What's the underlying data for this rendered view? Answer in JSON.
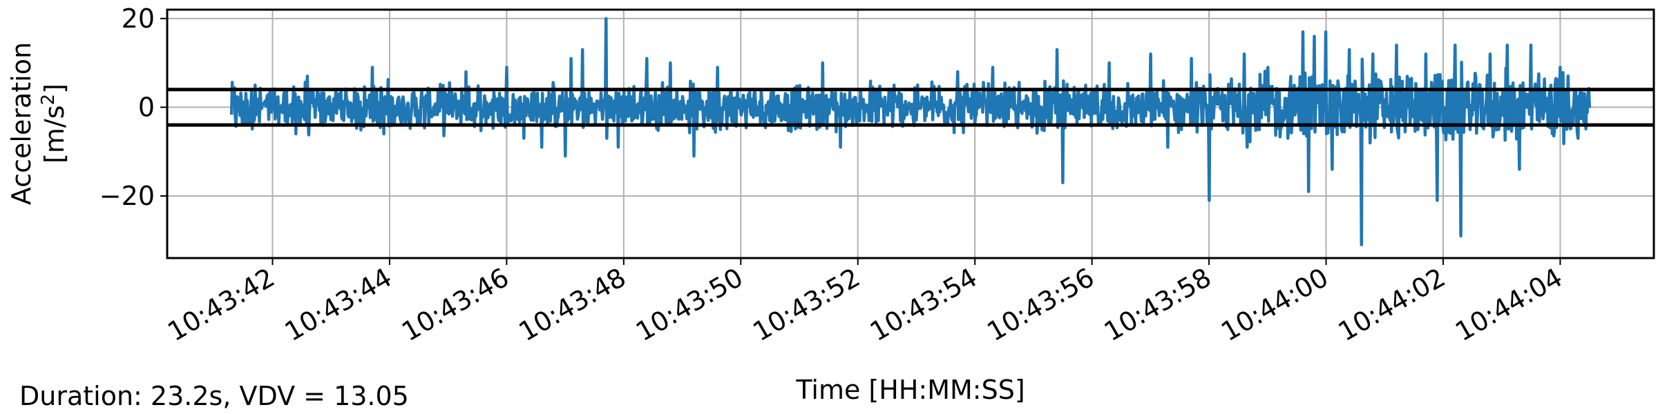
{
  "chart_data": {
    "type": "line",
    "xlabel": "Time [HH:MM:SS]",
    "ylabel_line1": "Acceleration",
    "ylabel_line2": "[m/s",
    "ylabel_sup": "2",
    "ylabel_close": "]",
    "x_start": "10:43:41.300",
    "x_end": "10:44:04.500",
    "xlim": [
      "10:43:40.2",
      "10:44:05.6"
    ],
    "ylim": [
      -34,
      22
    ],
    "x_ticks": [
      "10:43:42",
      "10:43:44",
      "10:43:46",
      "10:43:48",
      "10:43:50",
      "10:43:52",
      "10:43:54",
      "10:43:56",
      "10:43:58",
      "10:44:00",
      "10:44:02",
      "10:44:04"
    ],
    "y_ticks": [
      20,
      0,
      -20
    ],
    "y_tick_labels": [
      "20",
      "0",
      "−20"
    ],
    "grid": true,
    "threshold_lines": [
      4,
      -4
    ],
    "series": [
      {
        "color": "#1f77b4",
        "envelope_note_free": true,
        "peaks": [
          {
            "t": "10:43:41.70",
            "v": 5
          },
          {
            "t": "10:43:42.40",
            "v": -6
          },
          {
            "t": "10:43:42.60",
            "v": 7
          },
          {
            "t": "10:43:43.70",
            "v": 9
          },
          {
            "t": "10:43:43.90",
            "v": -6
          },
          {
            "t": "10:43:45.30",
            "v": 8
          },
          {
            "t": "10:43:46.00",
            "v": 9
          },
          {
            "t": "10:43:46.30",
            "v": -7
          },
          {
            "t": "10:43:46.60",
            "v": -9
          },
          {
            "t": "10:43:47.00",
            "v": -11
          },
          {
            "t": "10:43:47.10",
            "v": 11
          },
          {
            "t": "10:43:47.30",
            "v": 13
          },
          {
            "t": "10:43:47.70",
            "v": 20
          },
          {
            "t": "10:43:47.90",
            "v": -9
          },
          {
            "t": "10:43:48.40",
            "v": 11
          },
          {
            "t": "10:43:48.80",
            "v": 10
          },
          {
            "t": "10:43:49.20",
            "v": -11
          },
          {
            "t": "10:43:49.60",
            "v": 9
          },
          {
            "t": "10:43:51.40",
            "v": 10
          },
          {
            "t": "10:43:51.70",
            "v": -9
          },
          {
            "t": "10:43:53.70",
            "v": 8
          },
          {
            "t": "10:43:54.30",
            "v": 9
          },
          {
            "t": "10:43:55.40",
            "v": 13
          },
          {
            "t": "10:43:55.50",
            "v": -17
          },
          {
            "t": "10:43:56.30",
            "v": 10
          },
          {
            "t": "10:43:57.00",
            "v": 12
          },
          {
            "t": "10:43:57.30",
            "v": -9
          },
          {
            "t": "10:43:57.70",
            "v": 11
          },
          {
            "t": "10:43:58.00",
            "v": -21
          },
          {
            "t": "10:43:58.60",
            "v": 12
          },
          {
            "t": "10:43:59.00",
            "v": 9
          },
          {
            "t": "10:43:59.60",
            "v": 17
          },
          {
            "t": "10:43:59.70",
            "v": -19
          },
          {
            "t": "10:43:59.80",
            "v": 16
          },
          {
            "t": "10:44:00.00",
            "v": 17
          },
          {
            "t": "10:44:00.10",
            "v": -14
          },
          {
            "t": "10:44:00.40",
            "v": 13
          },
          {
            "t": "10:44:00.60",
            "v": -31
          },
          {
            "t": "10:44:00.80",
            "v": 12
          },
          {
            "t": "10:44:01.20",
            "v": 14
          },
          {
            "t": "10:44:01.70",
            "v": 12
          },
          {
            "t": "10:44:01.90",
            "v": -21
          },
          {
            "t": "10:44:02.20",
            "v": 14
          },
          {
            "t": "10:44:02.30",
            "v": -29
          },
          {
            "t": "10:44:02.80",
            "v": 12
          },
          {
            "t": "10:44:03.10",
            "v": 14
          },
          {
            "t": "10:44:03.30",
            "v": -14
          },
          {
            "t": "10:44:03.50",
            "v": 14
          },
          {
            "t": "10:44:04.00",
            "v": 9
          },
          {
            "t": "10:44:04.30",
            "v": -7
          }
        ]
      }
    ],
    "caption": "Duration: 23.2s, VDV = 13.05"
  }
}
